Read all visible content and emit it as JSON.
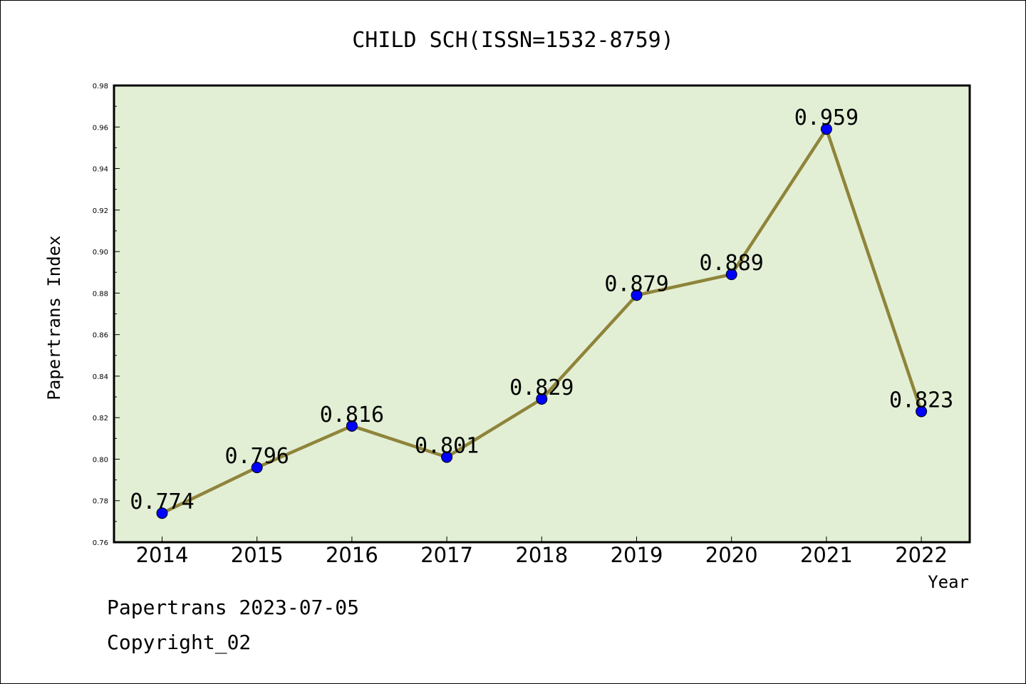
{
  "chart_data": {
    "type": "line",
    "title": "CHILD SCH(ISSN=1532-8759)",
    "xlabel": "Year",
    "ylabel": "Papertrans Index",
    "categories": [
      "2014",
      "2015",
      "2016",
      "2017",
      "2018",
      "2019",
      "2020",
      "2021",
      "2022"
    ],
    "series": [
      {
        "values": [
          0.774,
          0.796,
          0.816,
          0.801,
          0.829,
          0.879,
          0.889,
          0.959,
          0.823
        ],
        "data_labels": [
          "0.774",
          "0.796",
          "0.816",
          "0.801",
          "0.829",
          "0.879",
          "0.889",
          "0.959",
          "0.823"
        ]
      }
    ],
    "ylim": [
      0.76,
      0.98
    ],
    "yticks": [
      "0.76",
      "0.78",
      "0.80",
      "0.82",
      "0.84",
      "0.86",
      "0.88",
      "0.90",
      "0.92",
      "0.94",
      "0.96",
      "0.98"
    ],
    "grid": false,
    "legend": "none",
    "colors": {
      "plot_background": "#e2efd5",
      "line": "#8f843a",
      "marker": "#0000ff"
    }
  },
  "footer": {
    "line1": "Papertrans 2023-07-05",
    "line2": "Copyright_02"
  }
}
